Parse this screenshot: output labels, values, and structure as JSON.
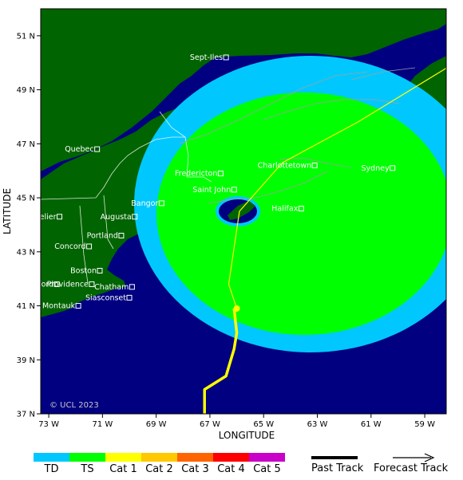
{
  "chart_data": {
    "type": "map",
    "xlabel": "LONGITUDE",
    "ylabel": "LATITUDE",
    "xlim": [
      -73.3,
      -58.2
    ],
    "ylim": [
      37,
      52
    ],
    "x_ticks": [
      {
        "value": -73,
        "label": "73 W"
      },
      {
        "value": -71,
        "label": "71 W"
      },
      {
        "value": -69,
        "label": "69 W"
      },
      {
        "value": -67,
        "label": "67 W"
      },
      {
        "value": -65,
        "label": "65 W"
      },
      {
        "value": -63,
        "label": "63 W"
      },
      {
        "value": -61,
        "label": "61 W"
      },
      {
        "value": -59,
        "label": "59 W"
      }
    ],
    "y_ticks": [
      {
        "value": 37,
        "label": "37 N"
      },
      {
        "value": 39,
        "label": "39 N"
      },
      {
        "value": 41,
        "label": "41 N"
      },
      {
        "value": 43,
        "label": "43 N"
      },
      {
        "value": 45,
        "label": "45 N"
      },
      {
        "value": 47,
        "label": "47 N"
      },
      {
        "value": 49,
        "label": "49 N"
      },
      {
        "value": 51,
        "label": "51 N"
      }
    ],
    "cities": [
      {
        "name": "Sept-Iles",
        "lon": -66.4,
        "lat": 50.2
      },
      {
        "name": "Quebec",
        "lon": -71.2,
        "lat": 46.8
      },
      {
        "name": "Charlottetown",
        "lon": -63.1,
        "lat": 46.2
      },
      {
        "name": "Fredericton",
        "lon": -66.6,
        "lat": 45.9
      },
      {
        "name": "Sydney",
        "lon": -60.2,
        "lat": 46.1
      },
      {
        "name": "Saint John",
        "lon": -66.1,
        "lat": 45.3
      },
      {
        "name": "Augusta",
        "lon": -69.8,
        "lat": 44.3
      },
      {
        "name": "Bangor",
        "lon": -68.8,
        "lat": 44.8
      },
      {
        "name": "Halifax",
        "lon": -63.6,
        "lat": 44.6
      },
      {
        "name": "Montpelier",
        "lon": -72.6,
        "lat": 44.3
      },
      {
        "name": "Portland",
        "lon": -70.3,
        "lat": 43.6
      },
      {
        "name": "Concord",
        "lon": -71.5,
        "lat": 43.2
      },
      {
        "name": "Boston",
        "lon": -71.1,
        "lat": 42.3
      },
      {
        "name": "Providence",
        "lon": -71.4,
        "lat": 41.8
      },
      {
        "name": "Chatham",
        "lon": -69.9,
        "lat": 41.7
      },
      {
        "name": "Hartford",
        "lon": -72.7,
        "lat": 41.8
      },
      {
        "name": "Montauk",
        "lon": -71.9,
        "lat": 41.0
      },
      {
        "name": "Siasconset",
        "lon": -70.0,
        "lat": 41.3
      }
    ],
    "wind_fields": [
      {
        "category": "TD",
        "center_lon": -62.5,
        "center_lat": 44.8,
        "rx_deg": 11.0,
        "ry_deg": 6.9,
        "color": "#00c8ff"
      },
      {
        "category": "TS",
        "center_lon": -62.2,
        "center_lat": 44.8,
        "rx_deg": 10.2,
        "ry_deg": 5.4,
        "color": "#00ff00"
      },
      {
        "category": "TD",
        "center_lon": -66.1,
        "center_lat": 44.55,
        "rx_deg": 0.8,
        "ry_deg": 0.55,
        "color": "#00c8ff",
        "note_hidden": true
      }
    ],
    "past_track": [
      {
        "lon": -67.2,
        "lat": 37.0
      },
      {
        "lon": -67.2,
        "lat": 37.9
      },
      {
        "lon": -66.4,
        "lat": 38.4
      },
      {
        "lon": -66.1,
        "lat": 39.4
      },
      {
        "lon": -66.0,
        "lat": 40.0
      },
      {
        "lon": -66.1,
        "lat": 40.9
      }
    ],
    "past_track_color": "#ffff00",
    "current_position": {
      "lon": -66.0,
      "lat": 40.9
    },
    "forecast_track": [
      {
        "lon": -66.0,
        "lat": 40.9
      },
      {
        "lon": -66.3,
        "lat": 41.8
      },
      {
        "lon": -65.9,
        "lat": 44.5
      },
      {
        "lon": -64.3,
        "lat": 46.3
      },
      {
        "lon": -61.5,
        "lat": 47.8
      },
      {
        "lon": -58.2,
        "lat": 49.8
      }
    ],
    "intensity_legend": [
      {
        "label": "TD",
        "color": "#00c8ff"
      },
      {
        "label": "TS",
        "color": "#00ff00"
      },
      {
        "label": "Cat 1",
        "color": "#ffff00"
      },
      {
        "label": "Cat 2",
        "color": "#ffc800"
      },
      {
        "label": "Cat 3",
        "color": "#ff6400"
      },
      {
        "label": "Cat 4",
        "color": "#ff0000"
      },
      {
        "label": "Cat 5",
        "color": "#c800c8"
      }
    ],
    "track_legend": {
      "past": "Past Track",
      "forecast": "Forecast Track"
    },
    "copyright": "© UCL 2023",
    "colors": {
      "ocean": "#000080",
      "land": "#006400",
      "border": "#ffffff"
    }
  }
}
